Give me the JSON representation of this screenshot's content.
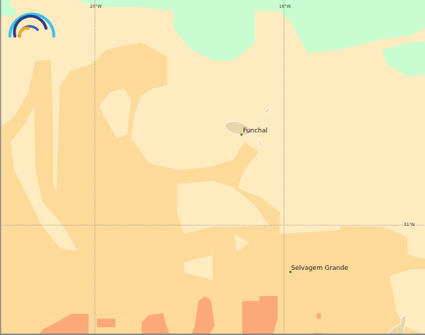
{
  "map": {
    "graticule": {
      "lon_labels": [
        "20°W",
        "16°W"
      ],
      "lat_labels": [
        "31°N"
      ]
    },
    "places": [
      {
        "name": "Funchal",
        "marker_color": "#1a8a1a"
      },
      {
        "name": "Selvagem Grande",
        "marker_color": "#1a8a1a"
      }
    ],
    "colors": {
      "base": "#feebc0",
      "orange": "#fdda99",
      "salmon": "#fca97a",
      "green": "#c9fdd1",
      "land": "#e8d6a8",
      "grid": "#999999"
    },
    "logo": "rainbow-arc-logo"
  }
}
